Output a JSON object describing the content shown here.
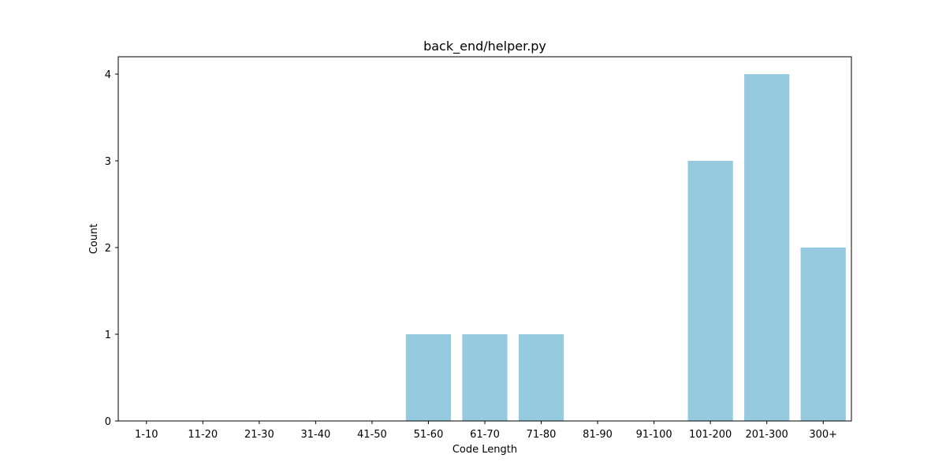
{
  "chart_data": {
    "type": "bar",
    "title": "back_end/helper.py",
    "xlabel": "Code Length",
    "ylabel": "Count",
    "categories": [
      "1-10",
      "11-20",
      "21-30",
      "31-40",
      "41-50",
      "51-60",
      "61-70",
      "71-80",
      "81-90",
      "91-100",
      "101-200",
      "201-300",
      "300+"
    ],
    "values": [
      0,
      0,
      0,
      0,
      0,
      1,
      1,
      1,
      0,
      0,
      3,
      4,
      2
    ],
    "ylim": [
      0,
      4.2
    ],
    "yticks": [
      0,
      1,
      2,
      3,
      4
    ],
    "bar_color": "#96cadf",
    "grid": false,
    "legend": false
  }
}
